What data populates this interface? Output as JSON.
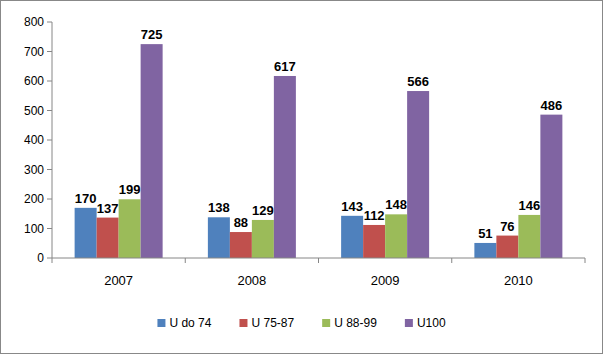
{
  "chart_data": {
    "type": "bar",
    "categories": [
      "2007",
      "2008",
      "2009",
      "2010"
    ],
    "series": [
      {
        "name": "U do 74",
        "color": "#4f81bd",
        "values": [
          170,
          138,
          143,
          51
        ]
      },
      {
        "name": "U 75-87",
        "color": "#c0504d",
        "values": [
          137,
          88,
          112,
          76
        ]
      },
      {
        "name": "U 88-99",
        "color": "#9bbb59",
        "values": [
          199,
          129,
          148,
          146
        ]
      },
      {
        "name": "U100",
        "color": "#8064a2",
        "values": [
          725,
          617,
          566,
          486
        ]
      }
    ],
    "ylim": [
      0,
      800
    ],
    "yticks": [
      0,
      100,
      200,
      300,
      400,
      500,
      600,
      700,
      800
    ],
    "grid": false,
    "legend": "bottom",
    "data_labels": true
  }
}
